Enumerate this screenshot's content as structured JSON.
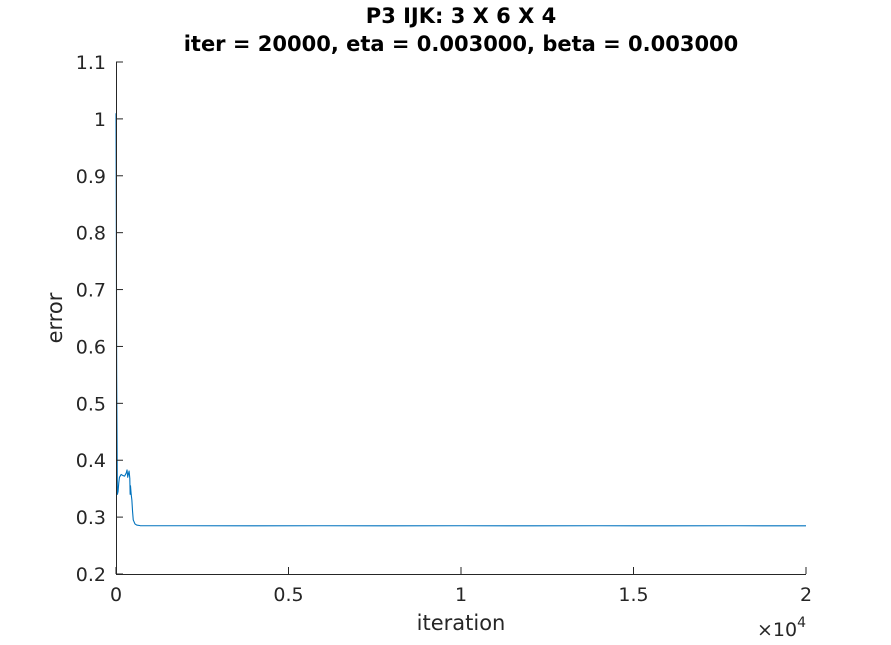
{
  "chart_data": {
    "type": "line",
    "title": "P3 IJK: 3 X 6 X 4",
    "subtitle": "iter = 20000, eta = 0.003000, beta = 0.003000",
    "xlabel": "iteration",
    "ylabel": "error",
    "xlim": [
      0,
      20000
    ],
    "ylim": [
      0.2,
      1.1
    ],
    "x_ticks": [
      0,
      5000,
      10000,
      15000,
      20000
    ],
    "x_tick_labels": [
      "0",
      "0.5",
      "1",
      "1.5",
      "2"
    ],
    "x_multiplier": {
      "base": "×10",
      "exponent": "4"
    },
    "y_ticks": [
      0.2,
      0.3,
      0.4,
      0.5,
      0.6,
      0.7,
      0.8,
      0.9,
      1.0,
      1.1
    ],
    "y_tick_labels": [
      "0.2",
      "0.3",
      "0.4",
      "0.5",
      "0.6",
      "0.7",
      "0.8",
      "0.9",
      "1",
      "1.1"
    ],
    "grid": false,
    "series": [
      {
        "color": "#0072bd",
        "x": [
          0,
          10,
          20,
          40,
          60,
          80,
          100,
          150,
          200,
          250,
          300,
          320,
          340,
          360,
          380,
          400,
          410,
          420,
          440,
          460,
          480,
          500,
          550,
          600,
          700,
          1000,
          2000,
          4000,
          6000,
          8000,
          10000,
          12000,
          14000,
          16000,
          18000,
          20000
        ],
        "y": [
          1.01,
          0.8,
          0.55,
          0.34,
          0.345,
          0.36,
          0.37,
          0.375,
          0.373,
          0.372,
          0.378,
          0.383,
          0.37,
          0.376,
          0.381,
          0.368,
          0.34,
          0.355,
          0.34,
          0.33,
          0.31,
          0.295,
          0.288,
          0.286,
          0.285,
          0.2848,
          0.2848,
          0.2847,
          0.2848,
          0.2847,
          0.2848,
          0.2847,
          0.2848,
          0.2847,
          0.2848,
          0.2847
        ]
      }
    ]
  }
}
